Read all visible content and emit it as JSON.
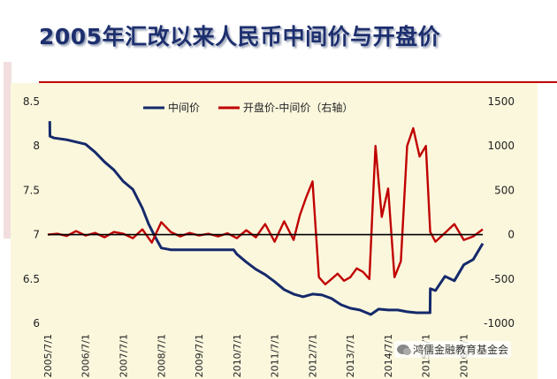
{
  "slide": {
    "title": "2005年汇改以来人民币中间价与开盘价",
    "watermark": "鸿儒金融教育基金会",
    "watermark_icon": "wechat-icon"
  },
  "colors": {
    "title": "#1d2f6e",
    "mid_price": "#15296b",
    "open_minus_mid": "#c00000",
    "plot_bg": "#fbf7dd",
    "rule": "#c00000"
  },
  "chart_data": {
    "type": "line",
    "title": "",
    "xlabel": "",
    "ylabel": "",
    "y2label": "",
    "ylim": [
      6,
      8.5
    ],
    "y2lim": [
      -1000,
      1500
    ],
    "yticks": [
      "8.5",
      "8",
      "7.5",
      "7",
      "6.5",
      "6"
    ],
    "y2ticks": [
      "1500",
      "1000",
      "500",
      "0",
      "-500",
      "-1000"
    ],
    "xticks": [
      "2005/7/1",
      "2006/7/1",
      "2007/7/1",
      "2008/7/1",
      "2009/7/1",
      "2010/7/1",
      "2011/7/1",
      "2012/7/1",
      "2013/7/1",
      "2014/7/1",
      "2015/7/1",
      "2016/7/1"
    ],
    "x_range": [
      "2005-07-01",
      "2016-12-31"
    ],
    "reference_line": {
      "axis": "y",
      "value": 7,
      "color": "#000000"
    },
    "legend": {
      "position": "top-center",
      "entries": [
        "中间价",
        "开盘价-中间价（右轴）"
      ]
    },
    "grid": false,
    "series": [
      {
        "name": "中间价",
        "axis": "left",
        "color": "#15296b",
        "x": [
          "2005-07-21",
          "2005-07-22",
          "2005-09-01",
          "2006-01-01",
          "2006-07-01",
          "2006-10-01",
          "2007-01-01",
          "2007-04-01",
          "2007-07-01",
          "2007-10-01",
          "2008-01-01",
          "2008-03-01",
          "2008-05-01",
          "2008-07-01",
          "2008-10-01",
          "2009-01-01",
          "2009-07-01",
          "2010-01-01",
          "2010-06-01",
          "2010-07-01",
          "2010-10-01",
          "2011-01-01",
          "2011-04-01",
          "2011-07-01",
          "2011-10-01",
          "2012-01-01",
          "2012-04-01",
          "2012-07-01",
          "2012-10-01",
          "2013-01-01",
          "2013-04-01",
          "2013-07-01",
          "2013-10-01",
          "2014-01-15",
          "2014-04-01",
          "2014-07-01",
          "2014-10-01",
          "2015-01-01",
          "2015-04-01",
          "2015-08-10",
          "2015-08-13",
          "2015-10-01",
          "2016-01-01",
          "2016-04-01",
          "2016-07-01",
          "2016-10-01",
          "2016-12-31"
        ],
        "values": [
          8.28,
          8.11,
          8.09,
          8.07,
          8.02,
          7.93,
          7.82,
          7.73,
          7.6,
          7.51,
          7.3,
          7.12,
          6.98,
          6.85,
          6.83,
          6.83,
          6.83,
          6.83,
          6.83,
          6.78,
          6.69,
          6.61,
          6.55,
          6.47,
          6.38,
          6.33,
          6.3,
          6.33,
          6.32,
          6.28,
          6.21,
          6.17,
          6.15,
          6.1,
          6.16,
          6.15,
          6.15,
          6.13,
          6.12,
          6.12,
          6.39,
          6.37,
          6.53,
          6.48,
          6.66,
          6.72,
          6.9
        ]
      },
      {
        "name": "开盘价-中间价（右轴）",
        "axis": "right",
        "color": "#c00000",
        "x": [
          "2005-07-01",
          "2005-10-01",
          "2006-01-01",
          "2006-04-01",
          "2006-07-01",
          "2006-10-01",
          "2007-01-01",
          "2007-04-01",
          "2007-07-01",
          "2007-10-01",
          "2008-01-01",
          "2008-04-01",
          "2008-07-01",
          "2008-10-01",
          "2009-01-01",
          "2009-04-01",
          "2009-07-01",
          "2009-10-01",
          "2010-01-01",
          "2010-04-01",
          "2010-07-01",
          "2010-10-01",
          "2011-01-01",
          "2011-04-01",
          "2011-07-01",
          "2011-10-01",
          "2012-01-01",
          "2012-03-01",
          "2012-05-01",
          "2012-07-01",
          "2012-09-01",
          "2012-11-01",
          "2013-01-01",
          "2013-03-01",
          "2013-05-01",
          "2013-07-01",
          "2013-09-01",
          "2013-11-01",
          "2014-01-01",
          "2014-02-01",
          "2014-03-01",
          "2014-05-01",
          "2014-07-01",
          "2014-09-01",
          "2014-11-01",
          "2015-01-01",
          "2015-03-01",
          "2015-05-01",
          "2015-07-01",
          "2015-08-12",
          "2015-10-01",
          "2016-01-01",
          "2016-04-01",
          "2016-07-01",
          "2016-10-01",
          "2016-12-31"
        ],
        "values": [
          0,
          10,
          -15,
          40,
          -10,
          20,
          -30,
          30,
          10,
          -40,
          60,
          -90,
          140,
          30,
          -20,
          20,
          -10,
          10,
          -20,
          15,
          -40,
          50,
          -30,
          120,
          -80,
          150,
          -60,
          220,
          420,
          600,
          -480,
          -560,
          -500,
          -440,
          -520,
          -480,
          -380,
          -420,
          -500,
          300,
          1000,
          200,
          520,
          -480,
          -300,
          1000,
          1200,
          880,
          1000,
          30,
          -80,
          20,
          120,
          -60,
          -20,
          60
        ]
      }
    ]
  }
}
